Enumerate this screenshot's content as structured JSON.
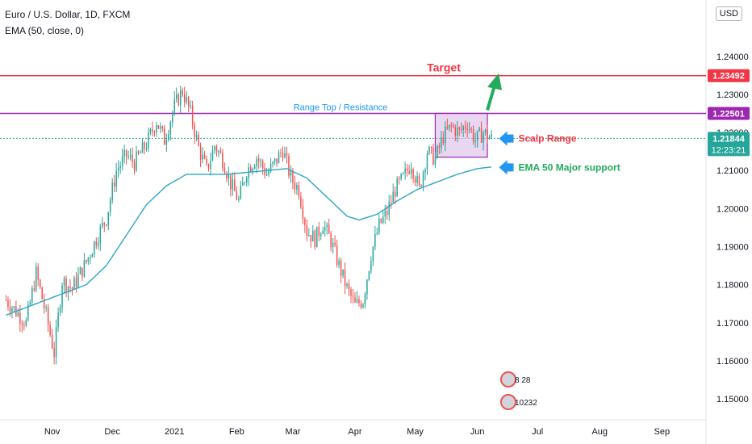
{
  "header": {
    "symbol": "Euro / U.S. Dollar, 1D, FXCM",
    "indicator": "EMA (50, close, 0)",
    "currency_button": "USD"
  },
  "colors": {
    "up": "#26a69a",
    "down": "#ef5350",
    "ema": "#2aa6c8",
    "target": "#f23645",
    "resistance": "#9c27b0",
    "current": "#26a69a",
    "annotation_blue": "#2196f3",
    "annotation_green": "#22ab5c",
    "annotation_red": "#f23645",
    "box_fill": "#d7b4e4"
  },
  "chart_data": {
    "type": "candlestick",
    "yticks": [
      "1.24000",
      "1.23000",
      "1.22000",
      "1.21000",
      "1.20000",
      "1.19000",
      "1.18000",
      "1.17000",
      "1.16000",
      "1.15000"
    ],
    "ylim": [
      1.1445,
      1.2548
    ],
    "xticks": [
      {
        "label": "Nov",
        "day": 23
      },
      {
        "label": "Dec",
        "day": 53
      },
      {
        "label": "2021",
        "day": 84
      },
      {
        "label": "Feb",
        "day": 115
      },
      {
        "label": "Mar",
        "day": 143
      },
      {
        "label": "Apr",
        "day": 174
      },
      {
        "label": "May",
        "day": 204
      },
      {
        "label": "Jun",
        "day": 235
      },
      {
        "label": "Jul",
        "day": 265
      },
      {
        "label": "Aug",
        "day": 296
      },
      {
        "label": "Sep",
        "day": 327
      }
    ],
    "price_path": [
      [
        0,
        1.176
      ],
      [
        10,
        1.17
      ],
      [
        15,
        1.183
      ],
      [
        20,
        1.172
      ],
      [
        24,
        1.162
      ],
      [
        28,
        1.181
      ],
      [
        33,
        1.179
      ],
      [
        40,
        1.186
      ],
      [
        45,
        1.192
      ],
      [
        50,
        1.1975
      ],
      [
        55,
        1.21
      ],
      [
        60,
        1.214
      ],
      [
        64,
        1.212
      ],
      [
        70,
        1.217
      ],
      [
        75,
        1.223
      ],
      [
        79,
        1.218
      ],
      [
        84,
        1.227
      ],
      [
        88,
        1.231
      ],
      [
        92,
        1.225
      ],
      [
        96,
        1.216
      ],
      [
        100,
        1.21
      ],
      [
        104,
        1.2165
      ],
      [
        108,
        1.213
      ],
      [
        112,
        1.2065
      ],
      [
        116,
        1.202
      ],
      [
        120,
        1.21
      ],
      [
        125,
        1.2135
      ],
      [
        130,
        1.209
      ],
      [
        134,
        1.212
      ],
      [
        138,
        1.2155
      ],
      [
        142,
        1.208
      ],
      [
        146,
        1.205
      ],
      [
        150,
        1.194
      ],
      [
        154,
        1.192
      ],
      [
        158,
        1.196
      ],
      [
        162,
        1.1915
      ],
      [
        166,
        1.185
      ],
      [
        170,
        1.179
      ],
      [
        174,
        1.1745
      ],
      [
        178,
        1.176
      ],
      [
        182,
        1.188
      ],
      [
        186,
        1.1955
      ],
      [
        190,
        1.199
      ],
      [
        194,
        1.205
      ],
      [
        198,
        1.208
      ],
      [
        202,
        1.212
      ],
      [
        206,
        1.205
      ],
      [
        210,
        1.215
      ],
      [
        214,
        1.213
      ],
      [
        218,
        1.219
      ],
      [
        222,
        1.2215
      ],
      [
        226,
        1.22
      ],
      [
        230,
        1.2225
      ],
      [
        234,
        1.218
      ],
      [
        238,
        1.22
      ],
      [
        242,
        1.2184
      ]
    ],
    "ema": [
      [
        0,
        1.172
      ],
      [
        10,
        1.174
      ],
      [
        20,
        1.176
      ],
      [
        30,
        1.178
      ],
      [
        40,
        1.18
      ],
      [
        50,
        1.185
      ],
      [
        60,
        1.193
      ],
      [
        70,
        1.201
      ],
      [
        80,
        1.206
      ],
      [
        90,
        1.209
      ],
      [
        100,
        1.209
      ],
      [
        110,
        1.209
      ],
      [
        120,
        1.2095
      ],
      [
        130,
        1.21
      ],
      [
        140,
        1.2105
      ],
      [
        150,
        1.208
      ],
      [
        160,
        1.203
      ],
      [
        170,
        1.198
      ],
      [
        176,
        1.197
      ],
      [
        185,
        1.1985
      ],
      [
        195,
        1.202
      ],
      [
        205,
        1.205
      ],
      [
        215,
        1.207
      ],
      [
        225,
        1.209
      ],
      [
        235,
        1.2105
      ],
      [
        243,
        1.211
      ]
    ],
    "last_day": 242,
    "x_range": [
      -3,
      349
    ],
    "levels": [
      {
        "name": "target",
        "label": "Target",
        "price": 1.23492,
        "price_label": "1.23492"
      },
      {
        "name": "resistance",
        "label": "Range Top / Resistance",
        "price": 1.22501,
        "price_label": "1.22501"
      },
      {
        "name": "current",
        "label": "",
        "price": 1.21844,
        "price_label": "1.21844",
        "countdown": "12:23:21"
      }
    ],
    "annotations": [
      {
        "name": "scalp-range",
        "text": "Scalp Range",
        "day": 245,
        "price": 1.2184
      },
      {
        "name": "ema-support",
        "text": "EMA 50 Major support",
        "day": 245,
        "price": 1.2108
      }
    ],
    "scalp_box": {
      "day_start": 214,
      "day_end": 240,
      "price_top": 1.22501,
      "price_bottom": 1.2135
    },
    "events": [
      {
        "name": "event-badge-1",
        "text": "8 28"
      },
      {
        "name": "event-badge-2",
        "text": "10232"
      }
    ]
  }
}
